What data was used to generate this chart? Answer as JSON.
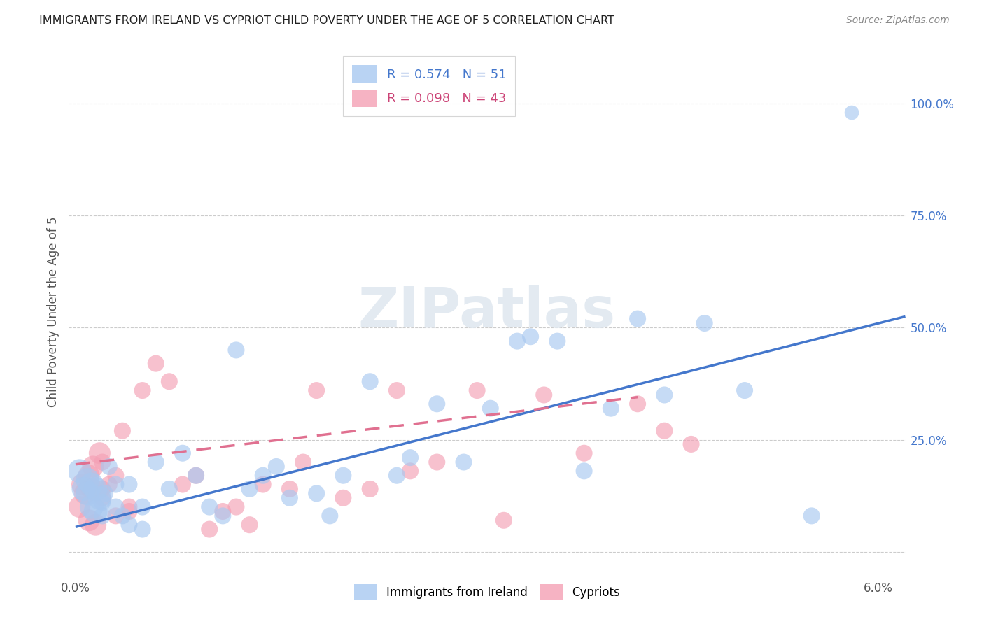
{
  "title": "IMMIGRANTS FROM IRELAND VS CYPRIOT CHILD POVERTY UNDER THE AGE OF 5 CORRELATION CHART",
  "source": "Source: ZipAtlas.com",
  "ylabel": "Child Poverty Under the Age of 5",
  "y_ticks": [
    0.0,
    0.25,
    0.5,
    0.75,
    1.0
  ],
  "y_tick_labels": [
    "",
    "25.0%",
    "50.0%",
    "75.0%",
    "100.0%"
  ],
  "x_lim": [
    -0.0005,
    0.062
  ],
  "y_lim": [
    -0.05,
    1.12
  ],
  "watermark_text": "ZIPatlas",
  "ireland_color": "#a8c8f0",
  "ireland_line_color": "#4477cc",
  "cypriot_color": "#f4a0b5",
  "cypriot_line_color": "#e07090",
  "ireland_line_x0": 0.0,
  "ireland_line_y0": 0.055,
  "ireland_line_x1": 0.062,
  "ireland_line_y1": 0.525,
  "cypriot_line_x0": 0.0,
  "cypriot_line_y0": 0.195,
  "cypriot_line_x1": 0.042,
  "cypriot_line_y1": 0.345,
  "ireland_x": [
    0.0003,
    0.0006,
    0.0009,
    0.0009,
    0.0012,
    0.0012,
    0.0015,
    0.0015,
    0.0018,
    0.002,
    0.002,
    0.0022,
    0.0025,
    0.003,
    0.003,
    0.0035,
    0.004,
    0.004,
    0.005,
    0.005,
    0.006,
    0.007,
    0.008,
    0.009,
    0.01,
    0.011,
    0.012,
    0.013,
    0.014,
    0.015,
    0.016,
    0.018,
    0.019,
    0.02,
    0.022,
    0.024,
    0.025,
    0.027,
    0.029,
    0.031,
    0.033,
    0.034,
    0.036,
    0.038,
    0.04,
    0.042,
    0.044,
    0.047,
    0.05,
    0.055,
    0.058
  ],
  "ireland_y": [
    0.18,
    0.14,
    0.13,
    0.16,
    0.1,
    0.15,
    0.09,
    0.14,
    0.12,
    0.11,
    0.08,
    0.13,
    0.19,
    0.1,
    0.15,
    0.08,
    0.06,
    0.15,
    0.05,
    0.1,
    0.2,
    0.14,
    0.22,
    0.17,
    0.1,
    0.08,
    0.45,
    0.14,
    0.17,
    0.19,
    0.12,
    0.13,
    0.08,
    0.17,
    0.38,
    0.17,
    0.21,
    0.33,
    0.2,
    0.32,
    0.47,
    0.48,
    0.47,
    0.18,
    0.32,
    0.52,
    0.35,
    0.51,
    0.36,
    0.08,
    0.98
  ],
  "ireland_sizes_base": 300,
  "ireland_large_indices": [
    0,
    1,
    2,
    3,
    4,
    5,
    6,
    7,
    8
  ],
  "ireland_large_size": 600,
  "ireland_giant_index": 50,
  "ireland_giant_size": 220,
  "cypriot_x": [
    0.0003,
    0.0005,
    0.0007,
    0.001,
    0.001,
    0.0012,
    0.0013,
    0.0015,
    0.0018,
    0.002,
    0.002,
    0.002,
    0.0025,
    0.003,
    0.003,
    0.0035,
    0.004,
    0.004,
    0.005,
    0.006,
    0.007,
    0.008,
    0.009,
    0.01,
    0.011,
    0.012,
    0.013,
    0.014,
    0.016,
    0.017,
    0.018,
    0.02,
    0.022,
    0.024,
    0.025,
    0.027,
    0.03,
    0.032,
    0.035,
    0.038,
    0.042,
    0.044,
    0.046
  ],
  "cypriot_y": [
    0.1,
    0.15,
    0.13,
    0.07,
    0.17,
    0.14,
    0.19,
    0.06,
    0.22,
    0.14,
    0.2,
    0.12,
    0.15,
    0.08,
    0.17,
    0.27,
    0.1,
    0.09,
    0.36,
    0.42,
    0.38,
    0.15,
    0.17,
    0.05,
    0.09,
    0.1,
    0.06,
    0.15,
    0.14,
    0.2,
    0.36,
    0.12,
    0.14,
    0.36,
    0.18,
    0.2,
    0.36,
    0.07,
    0.35,
    0.22,
    0.33,
    0.27,
    0.24
  ],
  "cypriot_large_indices": [
    0,
    1,
    2,
    3,
    4,
    5,
    6,
    7,
    8
  ],
  "cypriot_large_size": 500,
  "cypriot_sizes_base": 300,
  "legend1_label": "R = 0.574   N = 51",
  "legend2_label": "R = 0.098   N = 43",
  "bottom_legend1": "Immigrants from Ireland",
  "bottom_legend2": "Cypriots"
}
